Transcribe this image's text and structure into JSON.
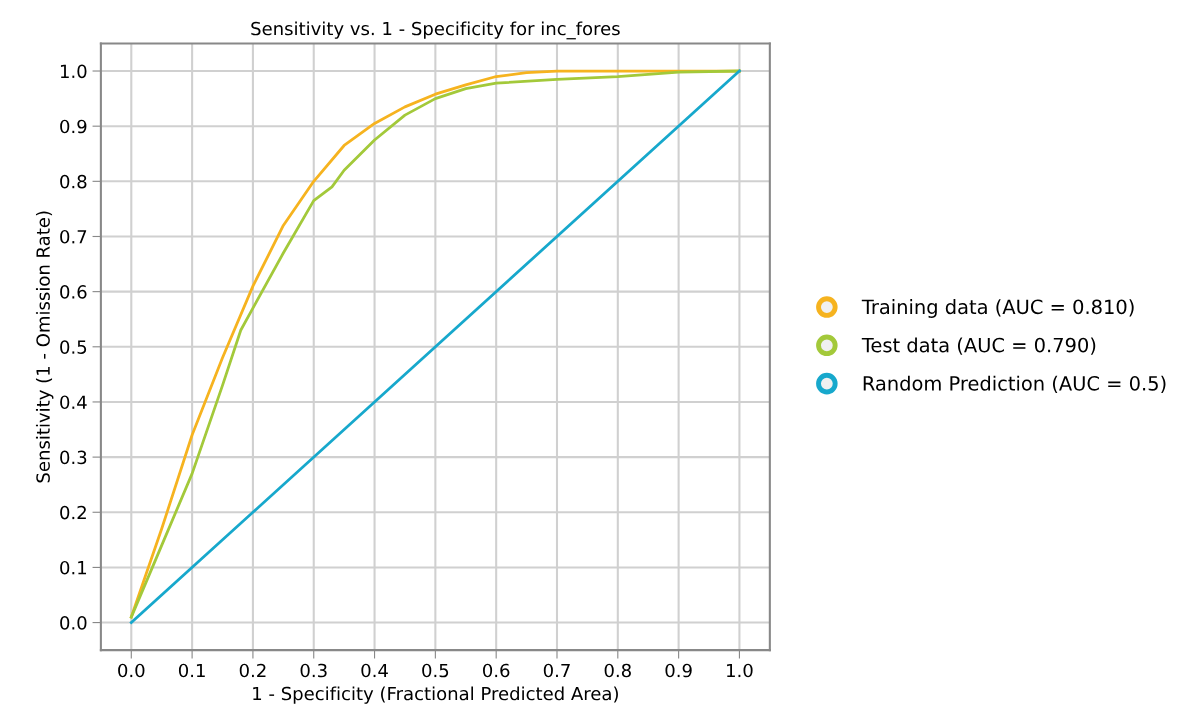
{
  "chart_data": {
    "type": "line",
    "title": "Sensitivity vs. 1 - Specificity for inc_fores",
    "xlabel": "1 - Specificity (Fractional Predicted Area)",
    "ylabel": "Sensitivity (1 - Omission Rate)",
    "series": [
      {
        "name": "Training data (AUC = 0.810)",
        "color": "#f6b31f",
        "x": [
          0,
          0.05,
          0.1,
          0.15,
          0.2,
          0.25,
          0.3,
          0.35,
          0.4,
          0.45,
          0.5,
          0.55,
          0.6,
          0.65,
          0.7,
          0.8,
          0.9,
          1.0
        ],
        "values": [
          0.01,
          0.17,
          0.34,
          0.48,
          0.61,
          0.72,
          0.8,
          0.865,
          0.905,
          0.935,
          0.958,
          0.975,
          0.99,
          0.997,
          1.0,
          1.0,
          1.0,
          1.0
        ]
      },
      {
        "name": "Test data (AUC = 0.790)",
        "color": "#a3c93a",
        "x": [
          0,
          0.05,
          0.1,
          0.15,
          0.18,
          0.2,
          0.25,
          0.3,
          0.33,
          0.35,
          0.4,
          0.45,
          0.5,
          0.55,
          0.6,
          0.7,
          0.8,
          0.9,
          1.0
        ],
        "values": [
          0.01,
          0.14,
          0.27,
          0.43,
          0.53,
          0.57,
          0.67,
          0.765,
          0.79,
          0.82,
          0.875,
          0.92,
          0.95,
          0.968,
          0.978,
          0.985,
          0.99,
          0.998,
          1.0
        ]
      },
      {
        "name": "Random Prediction (AUC = 0.5)",
        "color": "#17a8cc",
        "x": [
          0,
          1.0
        ],
        "values": [
          0,
          1.0
        ]
      }
    ],
    "xlim": [
      -0.05,
      1.05
    ],
    "ylim": [
      -0.05,
      1.05
    ],
    "xticks": [
      {
        "value": 0,
        "label": "0.0"
      },
      0.1,
      0.2,
      0.3,
      0.4,
      0.5,
      0.6,
      0.7,
      0.8,
      0.9,
      {
        "value": 1,
        "label": "1.0"
      }
    ],
    "yticks": [
      {
        "value": 0,
        "label": "0.0"
      },
      0.1,
      0.2,
      0.3,
      0.4,
      0.5,
      0.6,
      0.7,
      0.8,
      0.9,
      {
        "value": 1,
        "label": "1.0"
      }
    ],
    "grid": true,
    "legend": "right",
    "marker": "none",
    "line_style": "solid"
  }
}
